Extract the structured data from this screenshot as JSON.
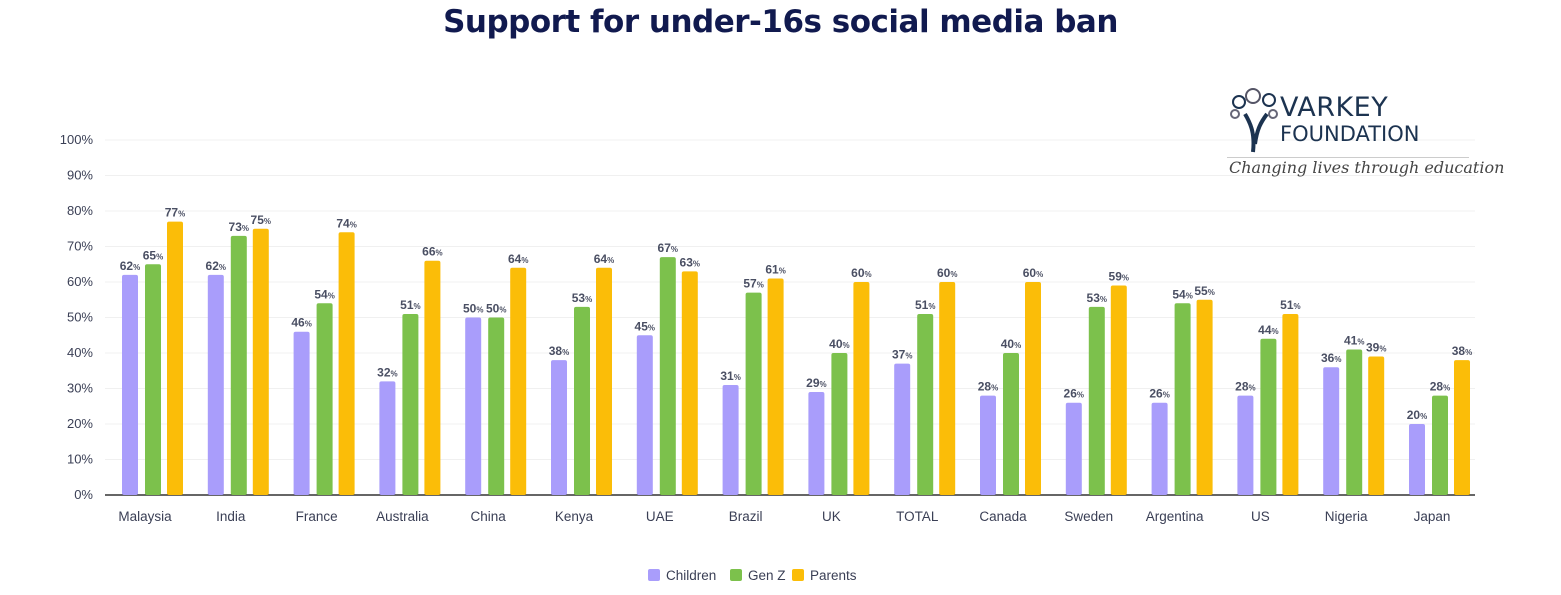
{
  "chart_data": {
    "type": "bar",
    "title": "Support for under-16s social media ban",
    "xlabel": "",
    "ylabel": "",
    "ylim": [
      0,
      100
    ],
    "yticks": [
      "0%",
      "10%",
      "20%",
      "30%",
      "40%",
      "50%",
      "60%",
      "70%",
      "80%",
      "90%",
      "100%"
    ],
    "grid": true,
    "legend_position": "bottom-center",
    "categories": [
      "Malaysia",
      "India",
      "France",
      "Australia",
      "China",
      "Kenya",
      "UAE",
      "Brazil",
      "UK",
      "TOTAL",
      "Canada",
      "Sweden",
      "Argentina",
      "US",
      "Nigeria",
      "Japan"
    ],
    "series": [
      {
        "name": "Children",
        "color": "#a99dfb",
        "values": [
          62,
          62,
          46,
          32,
          50,
          38,
          45,
          31,
          29,
          37,
          28,
          26,
          26,
          28,
          36,
          20
        ]
      },
      {
        "name": "Gen Z",
        "color": "#7cc14c",
        "values": [
          65,
          73,
          54,
          51,
          50,
          53,
          67,
          57,
          40,
          51,
          40,
          53,
          54,
          44,
          41,
          28
        ]
      },
      {
        "name": "Parents",
        "color": "#fbbd08",
        "values": [
          77,
          75,
          74,
          66,
          64,
          64,
          63,
          61,
          60,
          60,
          60,
          59,
          55,
          51,
          39,
          38
        ]
      }
    ]
  },
  "logo": {
    "name_line1": "VARKEY",
    "name_line2": "FOUNDATION",
    "tagline": "Changing lives through education"
  }
}
